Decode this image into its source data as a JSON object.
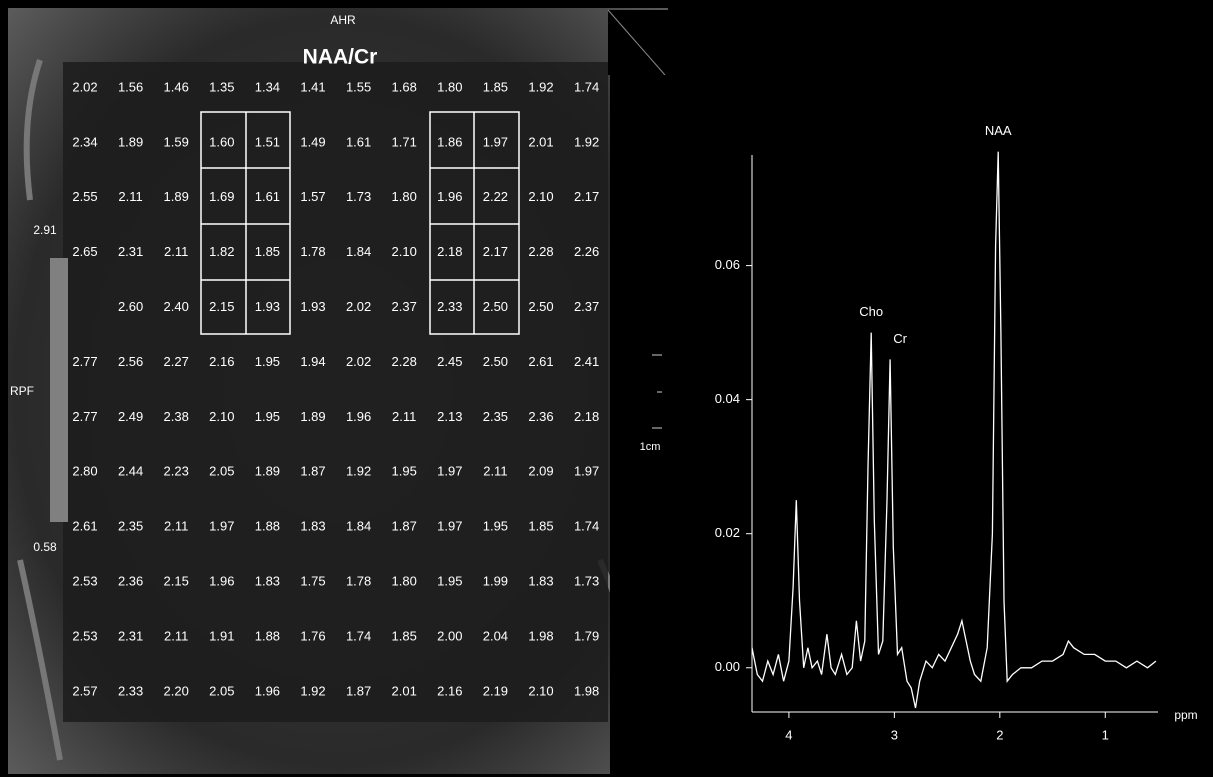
{
  "map": {
    "orientation_top": "AHR",
    "title": "NAA/Cr",
    "orientation_left": "RPF",
    "scale_max": "2.91",
    "scale_min": "0.58",
    "scale_bar": "1cm",
    "rows": [
      [
        "2.02",
        "1.56",
        "1.46",
        "1.35",
        "1.34",
        "1.41",
        "1.55",
        "1.68",
        "1.80",
        "1.85",
        "1.92",
        "1.74"
      ],
      [
        "2.34",
        "1.89",
        "1.59",
        "1.60",
        "1.51",
        "1.49",
        "1.61",
        "1.71",
        "1.86",
        "1.97",
        "2.01",
        "1.92"
      ],
      [
        "2.55",
        "2.11",
        "1.89",
        "1.69",
        "1.61",
        "1.57",
        "1.73",
        "1.80",
        "1.96",
        "2.22",
        "2.10",
        "2.17"
      ],
      [
        "2.65",
        "2.31",
        "2.11",
        "1.82",
        "1.85",
        "1.78",
        "1.84",
        "2.10",
        "2.18",
        "2.17",
        "2.28",
        "2.26"
      ],
      [
        null,
        "2.60",
        "2.40",
        "2.15",
        "1.93",
        "1.93",
        "2.02",
        "2.37",
        "2.33",
        "2.50",
        "2.50",
        "2.37"
      ],
      [
        "2.77",
        "2.56",
        "2.27",
        "2.16",
        "1.95",
        "1.94",
        "2.02",
        "2.28",
        "2.45",
        "2.50",
        "2.61",
        "2.41"
      ],
      [
        "2.77",
        "2.49",
        "2.38",
        "2.10",
        "1.95",
        "1.89",
        "1.96",
        "2.11",
        "2.13",
        "2.35",
        "2.36",
        "2.18"
      ],
      [
        "2.80",
        "2.44",
        "2.23",
        "2.05",
        "1.89",
        "1.87",
        "1.92",
        "1.95",
        "1.97",
        "2.11",
        "2.09",
        "1.97"
      ],
      [
        "2.61",
        "2.35",
        "2.11",
        "1.97",
        "1.88",
        "1.83",
        "1.84",
        "1.87",
        "1.97",
        "1.95",
        "1.85",
        "1.74"
      ],
      [
        "2.53",
        "2.36",
        "2.15",
        "1.96",
        "1.83",
        "1.75",
        "1.78",
        "1.80",
        "1.95",
        "1.99",
        "1.83",
        "1.73"
      ],
      [
        "2.53",
        "2.31",
        "2.11",
        "1.91",
        "1.88",
        "1.76",
        "1.74",
        "1.85",
        "2.00",
        "2.04",
        "1.98",
        "1.79"
      ],
      [
        "2.57",
        "2.33",
        "2.20",
        "2.05",
        "1.96",
        "1.92",
        "1.87",
        "2.01",
        "2.16",
        "2.19",
        "2.10",
        "1.98"
      ]
    ]
  },
  "chart_data": {
    "type": "line",
    "xlabel": "ppm",
    "color": "#ffffff",
    "xlim": [
      4.35,
      0.5
    ],
    "xticks": [
      4,
      3,
      2,
      1
    ],
    "ylim": [
      -0.0066,
      0.0765
    ],
    "yticks": [
      {
        "value": 0,
        "label": "0.00"
      },
      {
        "value": 0.02,
        "label": "0.02"
      },
      {
        "value": 0.04,
        "label": "0.04"
      },
      {
        "value": 0.06,
        "label": "0.06"
      }
    ],
    "annotations": [
      {
        "text": "Cho",
        "x": 3.22,
        "y": 0.05
      },
      {
        "text": "Cr",
        "x": 3.04,
        "y": 0.046
      },
      {
        "text": "NAA",
        "x": 2.015,
        "y": 0.077
      }
    ],
    "x": [
      4.35,
      4.3,
      4.25,
      4.2,
      4.15,
      4.1,
      4.05,
      4.0,
      3.96,
      3.93,
      3.9,
      3.86,
      3.82,
      3.78,
      3.73,
      3.69,
      3.64,
      3.6,
      3.56,
      3.5,
      3.45,
      3.4,
      3.36,
      3.32,
      3.28,
      3.25,
      3.22,
      3.19,
      3.15,
      3.11,
      3.07,
      3.04,
      3.01,
      2.97,
      2.93,
      2.88,
      2.84,
      2.8,
      2.76,
      2.7,
      2.64,
      2.58,
      2.52,
      2.46,
      2.4,
      2.36,
      2.32,
      2.28,
      2.24,
      2.18,
      2.12,
      2.07,
      2.04,
      2.015,
      1.99,
      1.96,
      1.93,
      1.88,
      1.8,
      1.7,
      1.6,
      1.5,
      1.4,
      1.35,
      1.3,
      1.2,
      1.1,
      1.0,
      0.9,
      0.8,
      0.7,
      0.6,
      0.52
    ],
    "values": [
      0.003,
      -0.001,
      -0.002,
      0.001,
      -0.001,
      0.002,
      -0.002,
      0.001,
      0.012,
      0.025,
      0.01,
      0,
      0.003,
      0,
      0.001,
      -0.001,
      0.005,
      0,
      -0.001,
      0.002,
      -0.001,
      0,
      0.007,
      0.001,
      0.004,
      0.03,
      0.05,
      0.022,
      0.002,
      0.004,
      0.025,
      0.046,
      0.018,
      0.002,
      0.003,
      -0.002,
      -0.003,
      -0.006,
      -0.002,
      0.001,
      0,
      0.002,
      0.001,
      0.003,
      0.005,
      0.007,
      0.004,
      0.001,
      -0.001,
      -0.002,
      0.003,
      0.02,
      0.063,
      0.077,
      0.05,
      0.01,
      -0.002,
      -0.001,
      0,
      0,
      0.001,
      0.001,
      0.002,
      0.004,
      0.003,
      0.002,
      0.002,
      0.001,
      0.001,
      0,
      0.001,
      0,
      0.001
    ]
  }
}
